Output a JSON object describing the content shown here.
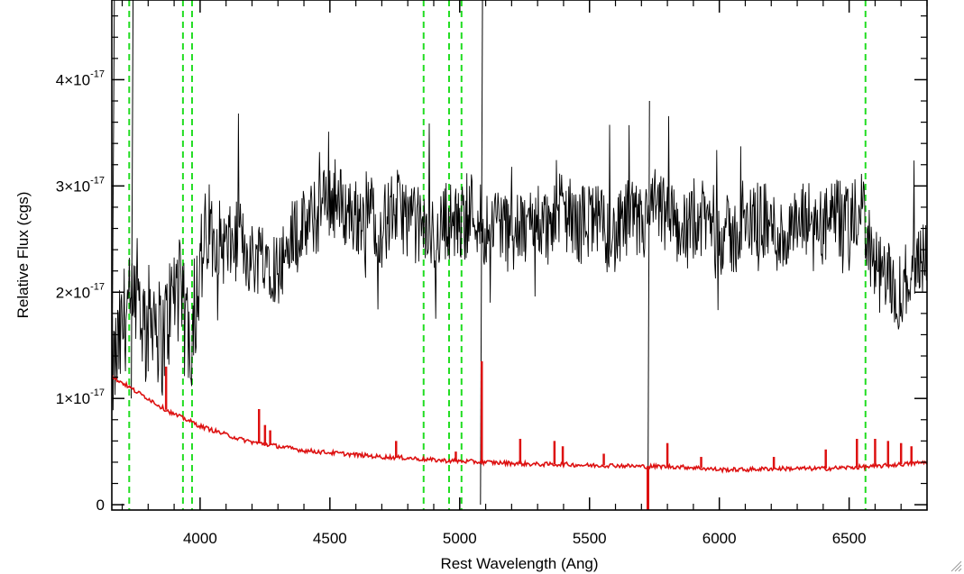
{
  "chart_data": {
    "type": "line",
    "title": "",
    "xlabel": "Rest Wavelength (Ang)",
    "ylabel": "Relative Flux (cgs)",
    "xlim": [
      3660,
      6800
    ],
    "ylim": [
      -0.05,
      4.75
    ],
    "y_multiplier": "1e-17",
    "x_ticks": [
      {
        "value": 4000,
        "label": "4000"
      },
      {
        "value": 4500,
        "label": "4500"
      },
      {
        "value": 5000,
        "label": "5000"
      },
      {
        "value": 5500,
        "label": "5500"
      },
      {
        "value": 6000,
        "label": "6000"
      },
      {
        "value": 6500,
        "label": "6500"
      }
    ],
    "y_ticks": [
      {
        "value": 0,
        "mantissa": "0",
        "base": "",
        "exp": ""
      },
      {
        "value": 1,
        "mantissa": "1",
        "base": "×10",
        "exp": "-17"
      },
      {
        "value": 2,
        "mantissa": "2",
        "base": "×10",
        "exp": "-17"
      },
      {
        "value": 3,
        "mantissa": "3",
        "base": "×10",
        "exp": "-17"
      },
      {
        "value": 4,
        "mantissa": "4",
        "base": "×10",
        "exp": "-17"
      }
    ],
    "reference_lines": {
      "color": "#22dd22",
      "x": [
        3727,
        3934,
        3969,
        4861,
        4959,
        5007,
        6563
      ]
    },
    "series": [
      {
        "color": "#000000",
        "x": [
          3660,
          3690,
          3720,
          3740,
          3760,
          3790,
          3820,
          3850,
          3880,
          3910,
          3940,
          3970,
          4000,
          4050,
          4100,
          4150,
          4200,
          4250,
          4300,
          4350,
          4400,
          4450,
          4500,
          4550,
          4600,
          4650,
          4700,
          4750,
          4800,
          4850,
          4900,
          4950,
          5000,
          5050,
          5100,
          5150,
          5200,
          5250,
          5300,
          5350,
          5400,
          5450,
          5500,
          5550,
          5600,
          5650,
          5700,
          5750,
          5800,
          5850,
          5900,
          5950,
          6000,
          6050,
          6100,
          6150,
          6200,
          6250,
          6300,
          6350,
          6400,
          6450,
          6500,
          6550,
          6600,
          6650,
          6700,
          6750,
          6800
        ],
        "y": [
          1.2,
          1.5,
          1.9,
          1.7,
          2.0,
          1.6,
          1.9,
          1.5,
          1.8,
          2.1,
          1.7,
          1.6,
          2.3,
          2.6,
          2.4,
          2.5,
          2.3,
          2.4,
          2.2,
          2.5,
          2.6,
          2.7,
          2.9,
          2.8,
          2.7,
          2.8,
          2.6,
          2.8,
          2.7,
          2.6,
          2.5,
          2.7,
          2.6,
          2.8,
          2.6,
          2.7,
          2.5,
          2.6,
          2.7,
          2.6,
          2.8,
          2.6,
          2.7,
          2.6,
          2.5,
          2.7,
          2.6,
          2.8,
          2.7,
          2.6,
          2.6,
          2.7,
          2.6,
          2.5,
          2.6,
          2.7,
          2.6,
          2.5,
          2.6,
          2.7,
          2.6,
          2.7,
          2.6,
          2.8,
          2.2,
          2.1,
          2.0,
          2.3,
          2.4
        ]
      },
      {
        "color": "#dd1111",
        "x": [
          3660,
          3700,
          3750,
          3800,
          3850,
          3900,
          3950,
          4000,
          4050,
          4100,
          4150,
          4200,
          4250,
          4300,
          4350,
          4400,
          4450,
          4500,
          4600,
          4700,
          4800,
          4900,
          5000,
          5100,
          5200,
          5300,
          5400,
          5500,
          5600,
          5700,
          5800,
          5900,
          6000,
          6100,
          6200,
          6300,
          6400,
          6500,
          6600,
          6700,
          6800
        ],
        "y": [
          1.2,
          1.15,
          1.07,
          1.0,
          0.92,
          0.85,
          0.8,
          0.74,
          0.7,
          0.66,
          0.62,
          0.59,
          0.57,
          0.55,
          0.53,
          0.51,
          0.5,
          0.49,
          0.47,
          0.45,
          0.44,
          0.42,
          0.41,
          0.4,
          0.39,
          0.38,
          0.38,
          0.37,
          0.37,
          0.36,
          0.36,
          0.35,
          0.33,
          0.33,
          0.34,
          0.34,
          0.34,
          0.35,
          0.36,
          0.38,
          0.4
        ],
        "emission_lines": [
          {
            "x": 3727,
            "y": 1.1
          },
          {
            "x": 3869,
            "y": 1.3
          },
          {
            "x": 4227,
            "y": 0.9
          },
          {
            "x": 4250,
            "y": 0.75
          },
          {
            "x": 4270,
            "y": 0.7
          },
          {
            "x": 4755,
            "y": 0.6
          },
          {
            "x": 4985,
            "y": 0.5
          },
          {
            "x": 5085,
            "y": 1.35
          },
          {
            "x": 5233,
            "y": 0.62
          },
          {
            "x": 5365,
            "y": 0.6
          },
          {
            "x": 5397,
            "y": 0.55
          },
          {
            "x": 5555,
            "y": 0.48
          },
          {
            "x": 5800,
            "y": 0.58
          },
          {
            "x": 5930,
            "y": 0.45
          },
          {
            "x": 6210,
            "y": 0.45
          },
          {
            "x": 6410,
            "y": 0.52
          },
          {
            "x": 6530,
            "y": 0.62
          },
          {
            "x": 6600,
            "y": 0.62
          },
          {
            "x": 6650,
            "y": 0.6
          },
          {
            "x": 6700,
            "y": 0.58
          },
          {
            "x": 6740,
            "y": 0.55
          }
        ],
        "absorption_lines": [
          {
            "x": 5725,
            "y": -0.05
          }
        ]
      }
    ]
  }
}
